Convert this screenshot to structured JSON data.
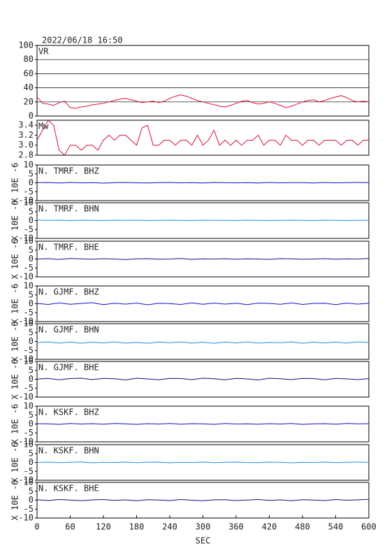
{
  "title": "2022/06/18 16:50",
  "chart_data": [
    {
      "type": "line",
      "xlim": [
        0,
        600
      ],
      "ylim": [
        0,
        100
      ],
      "yticks": [
        0,
        20,
        40,
        60,
        80,
        100
      ],
      "grid": true,
      "x": [
        0,
        10,
        20,
        30,
        40,
        50,
        60,
        70,
        80,
        90,
        100,
        110,
        120,
        130,
        140,
        150,
        160,
        170,
        180,
        190,
        200,
        210,
        220,
        230,
        240,
        250,
        260,
        270,
        280,
        290,
        300,
        310,
        320,
        330,
        340,
        350,
        360,
        370,
        380,
        390,
        400,
        410,
        420,
        430,
        440,
        450,
        460,
        470,
        480,
        490,
        500,
        510,
        520,
        530,
        540,
        550,
        560,
        570,
        580,
        590,
        600
      ],
      "series": [
        {
          "name": "VR",
          "color": "#e0103a",
          "values": [
            27,
            18,
            17,
            15,
            19,
            21,
            12,
            11,
            13,
            14,
            16,
            17,
            18,
            20,
            22,
            24,
            25,
            23,
            21,
            19,
            20,
            21,
            19,
            21,
            25,
            28,
            30,
            28,
            25,
            22,
            20,
            18,
            16,
            14,
            13,
            15,
            18,
            21,
            22,
            19,
            17,
            18,
            20,
            18,
            15,
            12,
            14,
            17,
            20,
            22,
            23,
            20,
            22,
            25,
            27,
            29,
            26,
            22,
            20,
            21,
            20
          ]
        }
      ]
    },
    {
      "type": "line",
      "xlim": [
        0,
        600
      ],
      "ylim": [
        2.8,
        3.5
      ],
      "yticks": [
        {
          "value": 2.8,
          "label": "2.8"
        },
        {
          "value": 3,
          "label": "3.0"
        },
        {
          "value": 3.2,
          "label": "3.2"
        },
        {
          "value": 3.4,
          "label": "3.4"
        }
      ],
      "grid": false,
      "x": [
        0,
        10,
        20,
        30,
        40,
        50,
        60,
        70,
        80,
        90,
        100,
        110,
        120,
        130,
        140,
        150,
        160,
        170,
        180,
        190,
        200,
        210,
        220,
        230,
        240,
        250,
        260,
        270,
        280,
        290,
        300,
        310,
        320,
        330,
        340,
        350,
        360,
        370,
        380,
        390,
        400,
        410,
        420,
        430,
        440,
        450,
        460,
        470,
        480,
        490,
        500,
        510,
        520,
        530,
        540,
        550,
        560,
        570,
        580,
        590,
        600
      ],
      "series": [
        {
          "name": "Mw",
          "color": "#d0103a",
          "values": [
            3.1,
            3.3,
            3.5,
            3.4,
            2.9,
            2.8,
            3.0,
            3.0,
            2.9,
            3.0,
            3.0,
            2.9,
            3.1,
            3.2,
            3.1,
            3.2,
            3.2,
            3.1,
            3.0,
            3.35,
            3.4,
            3.0,
            3.0,
            3.1,
            3.1,
            3.0,
            3.1,
            3.1,
            3.0,
            3.2,
            3.0,
            3.1,
            3.3,
            3.0,
            3.1,
            3.0,
            3.1,
            3.0,
            3.1,
            3.1,
            3.2,
            3.0,
            3.1,
            3.1,
            3.0,
            3.2,
            3.1,
            3.1,
            3.0,
            3.1,
            3.1,
            3.0,
            3.1,
            3.1,
            3.1,
            3.0,
            3.1,
            3.1,
            3.0,
            3.1,
            3.1
          ]
        }
      ]
    },
    {
      "type": "line",
      "xlim": [
        0,
        600
      ],
      "ylim": [
        -10,
        10
      ],
      "yticks": [
        -10,
        -5,
        0,
        5,
        10
      ],
      "grid": false,
      "ylabel": "X 10E -6",
      "x": [
        0,
        20,
        40,
        60,
        80,
        100,
        120,
        140,
        160,
        180,
        200,
        220,
        240,
        260,
        280,
        300,
        320,
        340,
        360,
        380,
        400,
        420,
        440,
        460,
        480,
        500,
        520,
        540,
        560,
        580,
        600
      ],
      "series": [
        {
          "name": "N. TMRF. BHZ",
          "color": "#1010d0",
          "values": [
            0.1,
            0.2,
            -0.1,
            0.2,
            0,
            0.1,
            -0.2,
            0.1,
            0.2,
            0,
            -0.1,
            0.1,
            0.2,
            0,
            0.1,
            -0.1,
            0.2,
            0.1,
            0,
            0.1,
            -0.1,
            0.2,
            0,
            0.1,
            0.1,
            -0.1,
            0.2,
            0,
            0.1,
            0.2,
            0.1
          ]
        }
      ]
    },
    {
      "type": "line",
      "xlim": [
        0,
        600
      ],
      "ylim": [
        -10,
        10
      ],
      "yticks": [
        -10,
        -5,
        0,
        5,
        10
      ],
      "grid": false,
      "ylabel": "X 10E -6",
      "x": [
        0,
        20,
        40,
        60,
        80,
        100,
        120,
        140,
        160,
        180,
        200,
        220,
        240,
        260,
        280,
        300,
        320,
        340,
        360,
        380,
        400,
        420,
        440,
        460,
        480,
        500,
        520,
        540,
        560,
        580,
        600
      ],
      "series": [
        {
          "name": "N. TMRF. BHN",
          "color": "#1e8ff0",
          "values": [
            0.3,
            0.1,
            0.2,
            0,
            0.2,
            0.1,
            0,
            0.2,
            0.1,
            0.2,
            0,
            0.1,
            0.2,
            0.1,
            0,
            0.2,
            0.1,
            0.1,
            0,
            0.2,
            0.1,
            0,
            0.1,
            0.2,
            0.1,
            0,
            0.2,
            0.1,
            0,
            0.1,
            0.2
          ]
        }
      ]
    },
    {
      "type": "line",
      "xlim": [
        0,
        600
      ],
      "ylim": [
        -10,
        10
      ],
      "yticks": [
        -10,
        -5,
        0,
        5,
        10
      ],
      "grid": false,
      "ylabel": "X 10E -6",
      "x": [
        0,
        20,
        40,
        60,
        80,
        100,
        120,
        140,
        160,
        180,
        200,
        220,
        240,
        260,
        280,
        300,
        320,
        340,
        360,
        380,
        400,
        420,
        440,
        460,
        480,
        500,
        520,
        540,
        560,
        580,
        600
      ],
      "series": [
        {
          "name": "N. TMRF. BHE",
          "color": "#101080",
          "values": [
            0,
            0.2,
            -0.2,
            0.3,
            0.1,
            -0.1,
            0.2,
            0,
            -0.3,
            0.1,
            0.2,
            -0.1,
            0,
            0.3,
            -0.2,
            0.1,
            0,
            0.2,
            -0.1,
            0.1,
            0,
            -0.2,
            0.2,
            0.1,
            -0.1,
            0,
            0.2,
            -0.1,
            0.1,
            0,
            0.3
          ]
        }
      ]
    },
    {
      "type": "line",
      "xlim": [
        0,
        600
      ],
      "ylim": [
        -10,
        10
      ],
      "yticks": [
        -10,
        -5,
        0,
        5,
        10
      ],
      "grid": false,
      "ylabel": "X 10E -6",
      "x": [
        0,
        20,
        40,
        60,
        80,
        100,
        120,
        140,
        160,
        180,
        200,
        220,
        240,
        260,
        280,
        300,
        320,
        340,
        360,
        380,
        400,
        420,
        440,
        460,
        480,
        500,
        520,
        540,
        560,
        580,
        600
      ],
      "series": [
        {
          "name": "N. GJMF. BHZ",
          "color": "#1010d0",
          "values": [
            0.2,
            -0.4,
            0.5,
            -0.3,
            0.2,
            0.6,
            -0.5,
            0.3,
            -0.2,
            0.4,
            -0.6,
            0.3,
            0.1,
            -0.4,
            0.5,
            -0.3,
            0.4,
            -0.2,
            0.3,
            -0.5,
            0.4,
            0.2,
            -0.3,
            0.5,
            -0.4,
            0.2,
            0.3,
            -0.5,
            0.4,
            -0.2,
            0.3
          ]
        }
      ]
    },
    {
      "type": "line",
      "xlim": [
        0,
        600
      ],
      "ylim": [
        -10,
        10
      ],
      "yticks": [
        -10,
        -5,
        0,
        5,
        10
      ],
      "grid": false,
      "ylabel": "X 10E -6",
      "x": [
        0,
        20,
        40,
        60,
        80,
        100,
        120,
        140,
        160,
        180,
        200,
        220,
        240,
        260,
        280,
        300,
        320,
        340,
        360,
        380,
        400,
        420,
        440,
        460,
        480,
        500,
        520,
        540,
        560,
        580,
        600
      ],
      "series": [
        {
          "name": "N. GJMF. BHN",
          "color": "#1e8ff0",
          "values": [
            -0.6,
            -0.2,
            -0.9,
            -0.3,
            -1,
            -0.4,
            -0.8,
            -0.2,
            -0.9,
            -0.5,
            -1,
            -0.3,
            -0.7,
            -0.2,
            -0.9,
            -0.4,
            -1,
            -0.3,
            -0.8,
            -0.2,
            -0.9,
            -0.5,
            -0.7,
            -0.2,
            -1,
            -0.4,
            -0.8,
            -0.3,
            -0.9,
            -0.2,
            -0.6
          ]
        }
      ]
    },
    {
      "type": "line",
      "xlim": [
        0,
        600
      ],
      "ylim": [
        -10,
        10
      ],
      "yticks": [
        -10,
        -5,
        0,
        5,
        10
      ],
      "grid": false,
      "ylabel": "X 10E -6",
      "x": [
        0,
        20,
        40,
        60,
        80,
        100,
        120,
        140,
        160,
        180,
        200,
        220,
        240,
        260,
        280,
        300,
        320,
        340,
        360,
        380,
        400,
        420,
        440,
        460,
        480,
        500,
        520,
        540,
        560,
        580,
        600
      ],
      "series": [
        {
          "name": "N. GJMF. BHE",
          "color": "#101080",
          "values": [
            0.1,
            0.5,
            -0.3,
            0.4,
            0.6,
            -0.2,
            0.5,
            0.3,
            -0.4,
            0.6,
            0.2,
            -0.3,
            0.5,
            0.4,
            -0.2,
            0.6,
            0.3,
            -0.3,
            0.5,
            0.2,
            -0.4,
            0.6,
            0.3,
            -0.2,
            0.5,
            0.4,
            -0.3,
            0.5,
            0.2,
            -0.2,
            0.4
          ]
        }
      ]
    },
    {
      "type": "line",
      "xlim": [
        0,
        600
      ],
      "ylim": [
        -10,
        10
      ],
      "yticks": [
        -10,
        -5,
        0,
        5,
        10
      ],
      "grid": false,
      "ylabel": "X 10E -6",
      "x": [
        0,
        20,
        40,
        60,
        80,
        100,
        120,
        140,
        160,
        180,
        200,
        220,
        240,
        260,
        280,
        300,
        320,
        340,
        360,
        380,
        400,
        420,
        440,
        460,
        480,
        500,
        520,
        540,
        560,
        580,
        600
      ],
      "series": [
        {
          "name": "N. KSKF. BHZ",
          "color": "#1010d0",
          "values": [
            0.2,
            0.1,
            -0.2,
            0.3,
            0,
            0.2,
            -0.1,
            0.3,
            0.1,
            -0.2,
            0.2,
            0,
            0.3,
            -0.1,
            0.2,
            0.1,
            -0.2,
            0.3,
            0,
            0.1,
            -0.1,
            0.2,
            0,
            0.3,
            -0.2,
            0.1,
            0.2,
            -0.1,
            0.3,
            0.1,
            0.2
          ]
        }
      ]
    },
    {
      "type": "line",
      "xlim": [
        0,
        600
      ],
      "ylim": [
        -10,
        10
      ],
      "yticks": [
        -10,
        -5,
        0,
        5,
        10
      ],
      "grid": false,
      "ylabel": "X 10E -6",
      "x": [
        0,
        20,
        40,
        60,
        80,
        100,
        120,
        140,
        160,
        180,
        200,
        220,
        240,
        260,
        280,
        300,
        320,
        340,
        360,
        380,
        400,
        420,
        440,
        460,
        480,
        500,
        520,
        540,
        560,
        580,
        600
      ],
      "series": [
        {
          "name": "N. KSKF. BHN",
          "color": "#1e8ff0",
          "values": [
            0,
            0.2,
            -0.1,
            0.1,
            0.3,
            -0.2,
            0.1,
            0,
            0.2,
            -0.1,
            0.1,
            0.2,
            -0.2,
            0.1,
            0,
            0.2,
            -0.1,
            0.1,
            0.2,
            0,
            -0.1,
            0.2,
            0.1,
            -0.2,
            0.1,
            0,
            0.2,
            -0.1,
            0.1,
            0.2,
            0
          ]
        }
      ]
    },
    {
      "type": "line",
      "xlim": [
        0,
        600
      ],
      "ylim": [
        -10,
        10
      ],
      "yticks": [
        -10,
        -5,
        0,
        5,
        10
      ],
      "grid": false,
      "ylabel": "X 10E -6",
      "xlabel": "SEC",
      "xticks": [
        0,
        60,
        120,
        180,
        240,
        300,
        360,
        420,
        480,
        540,
        600
      ],
      "x": [
        0,
        20,
        40,
        60,
        80,
        100,
        120,
        140,
        160,
        180,
        200,
        220,
        240,
        260,
        280,
        300,
        320,
        340,
        360,
        380,
        400,
        420,
        440,
        460,
        480,
        500,
        520,
        540,
        560,
        580,
        600
      ],
      "series": [
        {
          "name": "N. KSKF. BHE",
          "color": "#101080",
          "values": [
            0.3,
            -0.2,
            0.4,
            0.1,
            -0.3,
            0.2,
            0.4,
            -0.1,
            0.2,
            -0.3,
            0.3,
            0.1,
            -0.2,
            0.4,
            0,
            -0.3,
            0.2,
            0.3,
            -0.2,
            0.1,
            0.4,
            -0.1,
            0.2,
            -0.3,
            0.3,
            0.1,
            -0.2,
            0.4,
            0,
            0.2,
            0.5
          ]
        }
      ]
    }
  ]
}
